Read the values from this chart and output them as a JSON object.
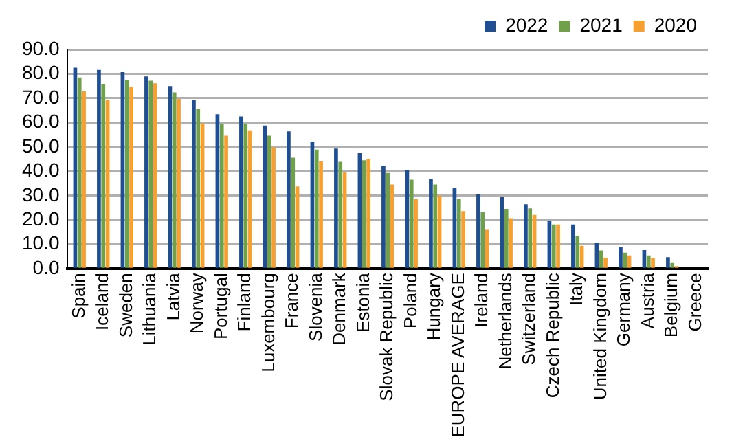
{
  "chart_data": {
    "type": "bar",
    "categories": [
      "Spain",
      "Iceland",
      "Sweden",
      "Lithuania",
      "Latvia",
      "Norway",
      "Portugal",
      "Finland",
      "Luxembourg",
      "France",
      "Slovenia",
      "Denmark",
      "Estonia",
      "Slovak Republic",
      "Poland",
      "Hungary",
      "EUROPE AVERAGE",
      "Ireland",
      "Netherlands",
      "Switzerland",
      "Czech Republic",
      "Italy",
      "United Kingdom",
      "Germany",
      "Austria",
      "Belgium",
      "Greece"
    ],
    "series": [
      {
        "name": "2022",
        "color": "#1f4e91",
        "values": [
          82.5,
          81.6,
          80.7,
          78.9,
          75.0,
          69.1,
          63.4,
          62.5,
          58.8,
          56.4,
          52.2,
          49.3,
          47.4,
          42.3,
          40.4,
          36.8,
          33.1,
          30.5,
          29.4,
          26.5,
          19.7,
          18.2,
          10.7,
          8.8,
          7.7,
          4.8,
          null
        ]
      },
      {
        "name": "2021",
        "color": "#70a04a",
        "values": [
          78.5,
          75.9,
          77.6,
          77.2,
          72.4,
          65.6,
          59.4,
          59.4,
          54.6,
          45.6,
          48.9,
          43.9,
          44.5,
          39.3,
          36.6,
          34.6,
          28.5,
          23.2,
          24.6,
          24.8,
          18.2,
          13.6,
          7.5,
          6.6,
          5.5,
          2.4,
          null
        ]
      },
      {
        "name": "2020",
        "color": "#f5a030",
        "values": [
          72.8,
          69.3,
          74.6,
          76.1,
          69.7,
          59.6,
          54.6,
          56.8,
          49.8,
          33.8,
          44.1,
          39.5,
          45.0,
          34.6,
          28.5,
          30.0,
          23.7,
          16.0,
          20.8,
          22.1,
          18.2,
          9.4,
          4.6,
          5.5,
          4.4,
          1.1,
          null
        ]
      }
    ],
    "ylim": [
      0,
      90
    ],
    "yticks": [
      {
        "value": 0,
        "label": "0.0"
      },
      {
        "value": 10,
        "label": "10.0"
      },
      {
        "value": 20,
        "label": "20.0"
      },
      {
        "value": 30,
        "label": "30.0"
      },
      {
        "value": 40,
        "label": "40.0"
      },
      {
        "value": 50,
        "label": "50.0"
      },
      {
        "value": 60,
        "label": "60.0"
      },
      {
        "value": 70,
        "label": "70.0"
      },
      {
        "value": 80,
        "label": "80.0"
      },
      {
        "value": 90,
        "label": "90.0"
      }
    ],
    "grid": "y",
    "legend": "top"
  }
}
